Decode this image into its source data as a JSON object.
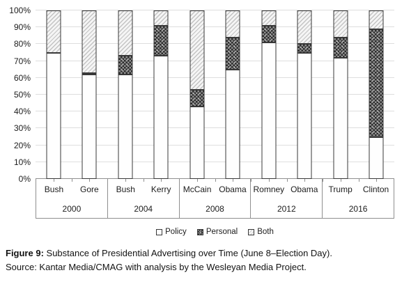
{
  "figure": {
    "caption_label": "Figure 9:",
    "caption_title": "Substance of Presidential Advertising over Time (June 8–Election Day).",
    "caption_source": "Source: Kantar Media/CMAG with analysis by the Wesleyan Media Project."
  },
  "chart_data": {
    "type": "bar",
    "stacked": true,
    "orientation": "vertical",
    "units": "percent of ads",
    "ylim": [
      0,
      100
    ],
    "grid": true,
    "ytick_labels": [
      "0%",
      "10%",
      "20%",
      "30%",
      "40%",
      "50%",
      "60%",
      "70%",
      "80%",
      "90%",
      "100%"
    ],
    "categories": [
      "Bush",
      "Gore",
      "Bush",
      "Kerry",
      "McCain",
      "Obama",
      "Romney",
      "Obama",
      "Trump",
      "Clinton"
    ],
    "groups": [
      {
        "year": "2000",
        "members": [
          "Bush",
          "Gore"
        ]
      },
      {
        "year": "2004",
        "members": [
          "Bush",
          "Kerry"
        ]
      },
      {
        "year": "2008",
        "members": [
          "McCain",
          "Obama"
        ]
      },
      {
        "year": "2012",
        "members": [
          "Romney",
          "Obama"
        ]
      },
      {
        "year": "2016",
        "members": [
          "Trump",
          "Clinton"
        ]
      }
    ],
    "series": [
      {
        "name": "Policy",
        "key": "policy",
        "values": [
          75,
          62,
          62,
          73,
          43,
          65,
          81,
          75,
          72,
          25
        ]
      },
      {
        "name": "Personal",
        "key": "personal",
        "values": [
          0,
          1,
          11,
          18,
          10,
          19,
          10,
          5,
          12,
          64
        ]
      },
      {
        "name": "Both",
        "key": "both",
        "values": [
          25,
          37,
          27,
          9,
          47,
          16,
          9,
          20,
          16,
          11
        ]
      }
    ],
    "legend": {
      "position": "bottom",
      "entries": [
        "Policy",
        "Personal",
        "Both"
      ]
    },
    "colors": {
      "policy_fill": "#fefefe",
      "personal_dark": "#2b2b2b",
      "personal_light": "#909090",
      "both_line": "#c3c3c3",
      "both_bg": "#f5f5f5",
      "bar_border": "#383838",
      "gridline": "#dedede",
      "axis_line": "#8f8f8f",
      "text": "#1c1c1c"
    }
  }
}
